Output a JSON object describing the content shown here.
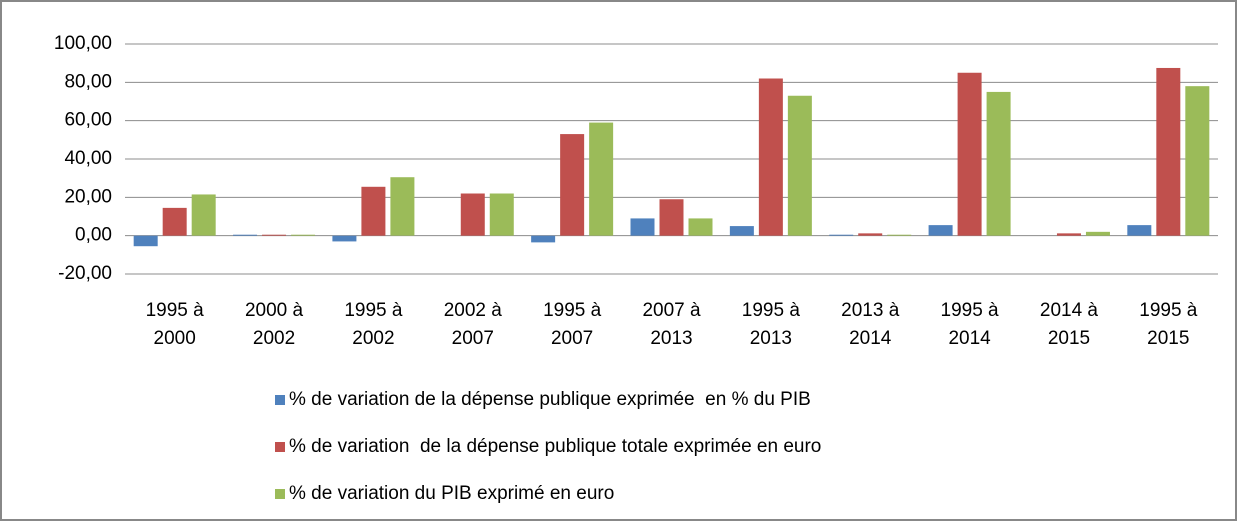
{
  "chart_data": {
    "type": "bar",
    "categories": [
      "1995 à 2000",
      "2000 à 2002",
      "1995 à 2002",
      "2002 à 2007",
      "1995 à 2007",
      "2007 à 2013",
      "1995 à 2013",
      "2013 à 2014",
      "1995 à 2014",
      "2014 à 2015",
      "1995 à 2015"
    ],
    "series": [
      {
        "name": "% de variation de la dépense publique exprimée  en % du PIB",
        "color": "#4f81bd",
        "values": [
          -5.5,
          0.5,
          -3,
          0,
          -3.5,
          9,
          5,
          0.5,
          5.5,
          0,
          5.5
        ]
      },
      {
        "name": "% de variation  de la dépense publique totale exprimée en euro",
        "color": "#c0504d",
        "values": [
          14.5,
          0.5,
          25.5,
          22,
          53,
          19,
          82,
          1.2,
          85,
          1.2,
          87.5
        ]
      },
      {
        "name": "% de variation du PIB exprimé en euro",
        "color": "#9bbb59",
        "values": [
          21.5,
          0.5,
          30.5,
          22,
          59,
          9,
          73,
          0.5,
          75,
          2,
          78
        ]
      }
    ],
    "ylim": [
      -20,
      100
    ],
    "yticks": [
      {
        "value": -20,
        "label": "-20,00"
      },
      {
        "value": 0,
        "label": "0,00"
      },
      {
        "value": 20,
        "label": "20,00"
      },
      {
        "value": 40,
        "label": "40,00"
      },
      {
        "value": 60,
        "label": "60,00"
      },
      {
        "value": 80,
        "label": "80,00"
      },
      {
        "value": 100,
        "label": "100,00"
      }
    ],
    "grid": true,
    "legend": "bottom"
  }
}
